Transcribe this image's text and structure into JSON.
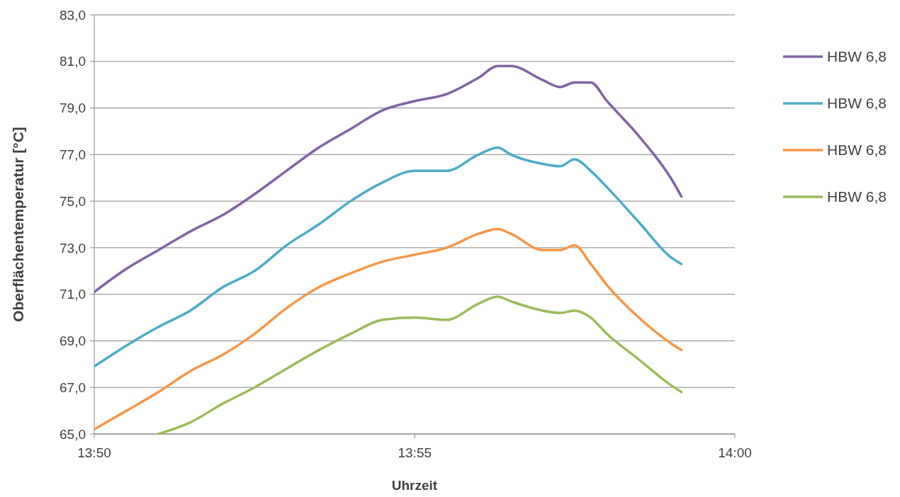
{
  "chart_data": {
    "type": "line",
    "xlabel": "Uhrzeit",
    "ylabel": "Oberflächentemperatur [°C]",
    "x": [
      13.8333,
      13.8417,
      13.85,
      13.8583,
      13.8667,
      13.875,
      13.8833,
      13.8917,
      13.9,
      13.9083,
      13.9167,
      13.925,
      13.9333,
      13.9383,
      13.9417,
      13.95,
      13.9545,
      13.9583,
      13.9625,
      13.9667,
      13.975,
      13.9833,
      13.9861
    ],
    "series": [
      {
        "name": "HBW 6,8",
        "color": "#8064a2",
        "values": [
          71.1,
          72.1,
          72.9,
          73.7,
          74.4,
          75.3,
          76.3,
          77.3,
          78.1,
          78.9,
          79.3,
          79.6,
          80.3,
          80.8,
          80.8,
          80.2,
          79.9,
          80.1,
          80.1,
          79.3,
          77.8,
          76.0,
          75.2
        ]
      },
      {
        "name": "HBW 6,8",
        "color": "#4bacc6",
        "values": [
          67.9,
          68.8,
          69.6,
          70.3,
          71.3,
          72.0,
          73.1,
          74.0,
          75.0,
          75.8,
          76.3,
          76.3,
          77.0,
          77.3,
          77.0,
          76.6,
          76.5,
          76.8,
          76.3,
          75.6,
          74.1,
          72.6,
          72.3
        ]
      },
      {
        "name": "HBW 6,8",
        "color": "#f79646",
        "values": [
          65.2,
          66.0,
          66.8,
          67.7,
          68.4,
          69.3,
          70.4,
          71.3,
          71.9,
          72.4,
          72.7,
          73.0,
          73.6,
          73.8,
          73.6,
          72.9,
          72.9,
          73.1,
          72.3,
          71.4,
          70.0,
          68.9,
          68.6
        ]
      },
      {
        "name": "HBW 6,8",
        "color": "#9bbb59",
        "values": [
          null,
          null,
          65.0,
          65.5,
          66.3,
          67.0,
          67.8,
          68.6,
          69.3,
          69.9,
          70.0,
          69.9,
          70.6,
          70.9,
          70.7,
          70.3,
          70.2,
          70.3,
          70.0,
          69.3,
          68.2,
          67.1,
          66.8
        ]
      }
    ],
    "xlim": [
      13.8333,
      14
    ],
    "xticks": [
      {
        "value": 13.8333,
        "label": "13:50"
      },
      {
        "value": 13.9167,
        "label": "13:55"
      },
      {
        "value": 14,
        "label": "14:00"
      }
    ],
    "ylim": [
      65,
      83
    ],
    "yticks": [
      {
        "value": 65,
        "label": "65,0"
      },
      {
        "value": 67,
        "label": "67,0"
      },
      {
        "value": 69,
        "label": "69,0"
      },
      {
        "value": 71,
        "label": "71,0"
      },
      {
        "value": 73,
        "label": "73,0"
      },
      {
        "value": 75,
        "label": "75,0"
      },
      {
        "value": 77,
        "label": "77,0"
      },
      {
        "value": 79,
        "label": "79,0"
      },
      {
        "value": 81,
        "label": "81,0"
      },
      {
        "value": 83,
        "label": "83,0"
      }
    ],
    "grid": "y",
    "legend": "right",
    "line_style": "solid",
    "marker": "none"
  }
}
